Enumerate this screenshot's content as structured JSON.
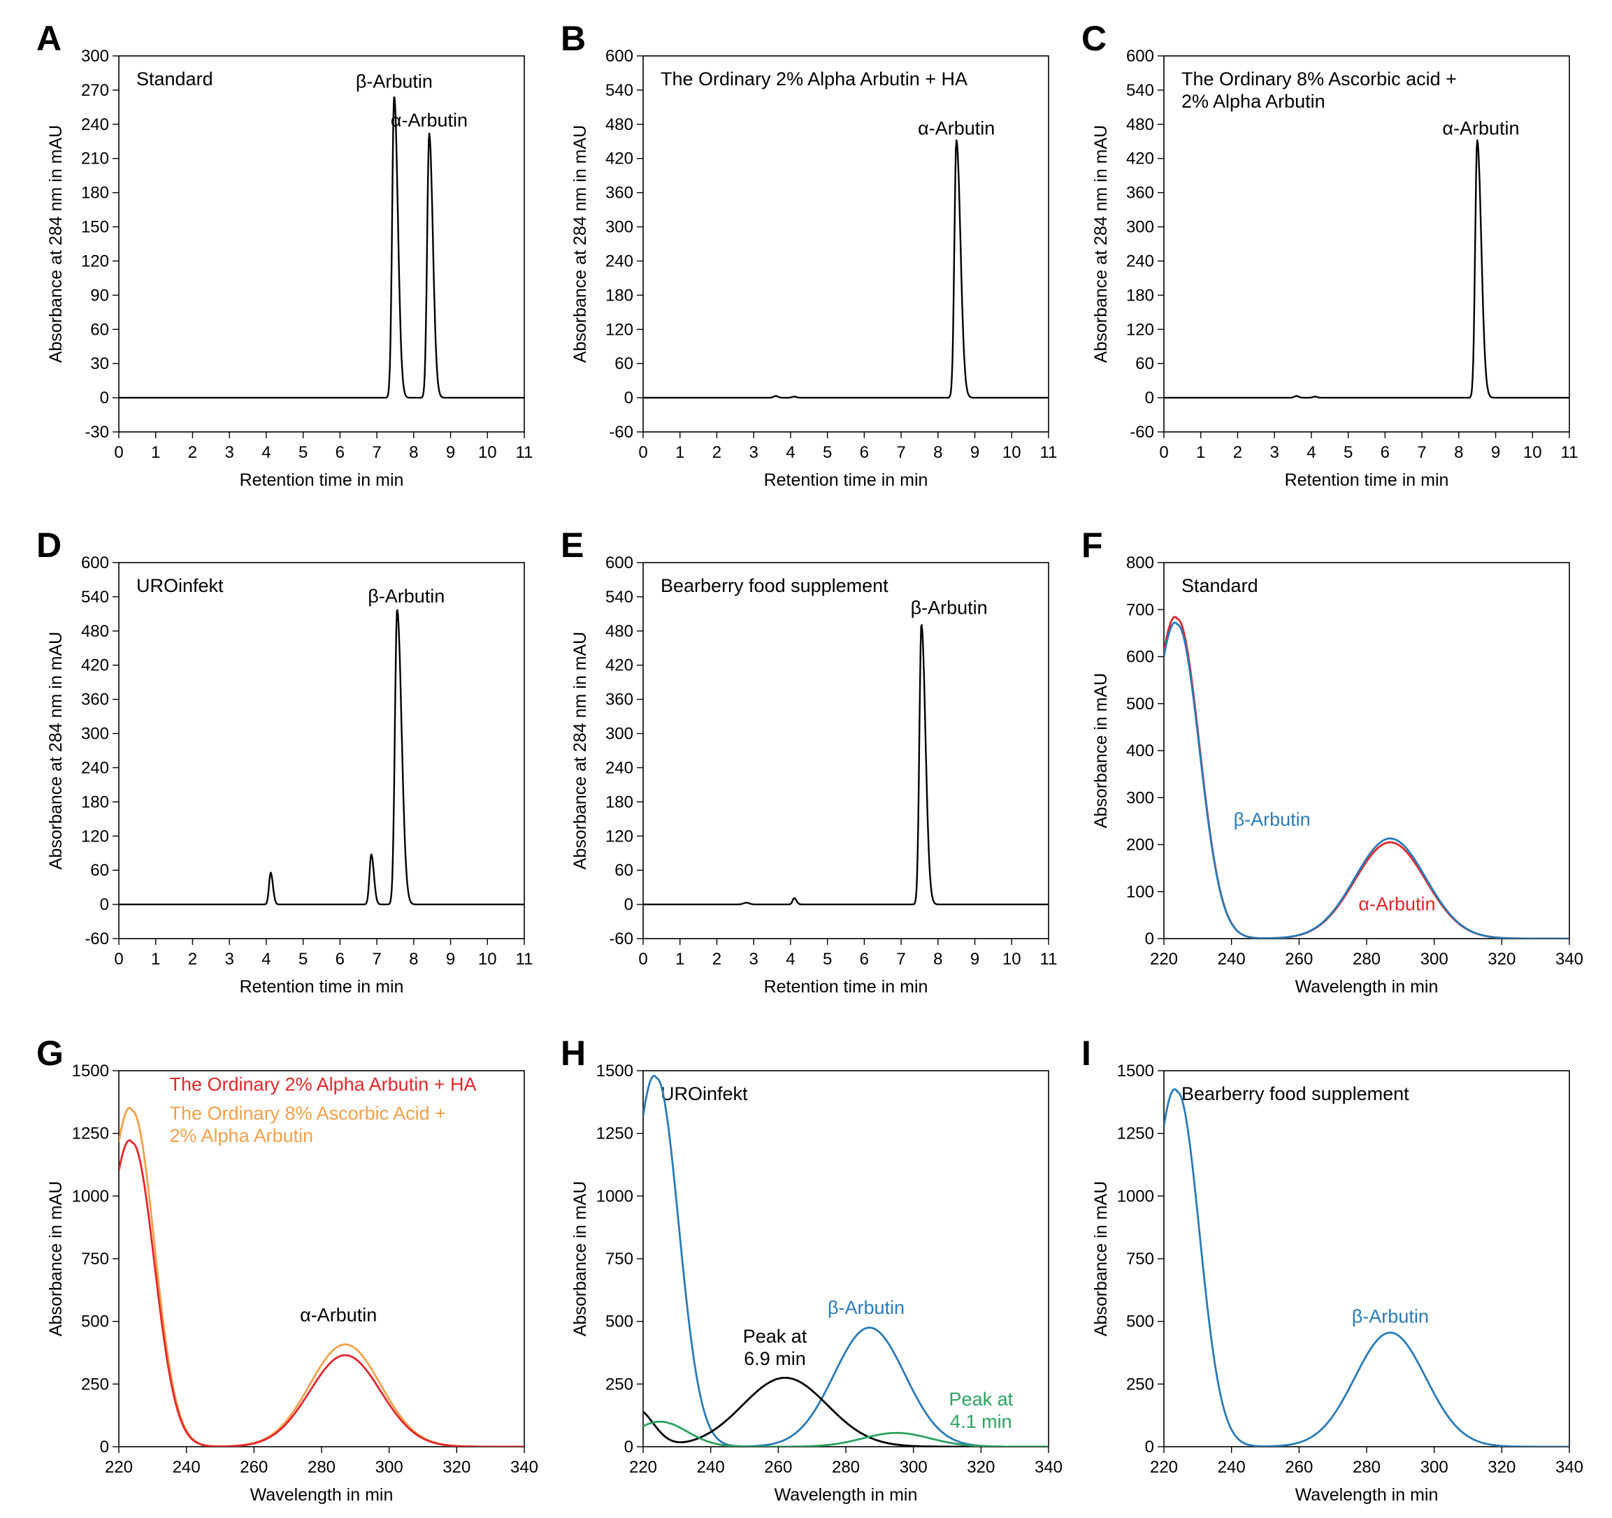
{
  "chart_data": [
    {
      "id": "A",
      "letter": "A",
      "type": "line",
      "title_lines": [
        "Standard"
      ],
      "xlabel": "Retention time in min",
      "ylabel": "Absorbance at 284 nm in mAU",
      "xlim": [
        0,
        11
      ],
      "ylim": [
        -30,
        300
      ],
      "xticks": [
        0,
        1,
        2,
        3,
        4,
        5,
        6,
        7,
        8,
        9,
        10,
        11
      ],
      "yticks": [
        -30,
        0,
        30,
        60,
        90,
        120,
        150,
        180,
        210,
        240,
        270,
        300
      ],
      "series": [
        {
          "name": "chromatogram",
          "color": "#000000",
          "baseline": 0,
          "peaks": [
            [
              7.47,
              265,
              0.055,
              0.1
            ],
            [
              8.42,
              232,
              0.055,
              0.1
            ]
          ]
        }
      ],
      "annotations": [
        {
          "lines": [
            "β-Arbutin"
          ],
          "x": 7.47,
          "y": 272,
          "color": "#000000"
        },
        {
          "lines": [
            "α-Arbutin"
          ],
          "x": 8.42,
          "y": 238,
          "color": "#000000"
        }
      ]
    },
    {
      "id": "B",
      "letter": "B",
      "type": "line",
      "title_lines": [
        "The Ordinary 2% Alpha Arbutin + HA"
      ],
      "xlabel": "Retention time in min",
      "ylabel": "Absorbance at 284 nm in mAU",
      "xlim": [
        0,
        11
      ],
      "ylim": [
        -60,
        600
      ],
      "xticks": [
        0,
        1,
        2,
        3,
        4,
        5,
        6,
        7,
        8,
        9,
        10,
        11
      ],
      "yticks": [
        -60,
        0,
        60,
        120,
        180,
        240,
        300,
        360,
        420,
        480,
        540,
        600
      ],
      "series": [
        {
          "name": "chromatogram",
          "color": "#000000",
          "baseline": 0,
          "peaks": [
            [
              3.6,
              3,
              0.06,
              0.06
            ],
            [
              4.1,
              2,
              0.06,
              0.06
            ],
            [
              8.5,
              452,
              0.055,
              0.11
            ]
          ]
        }
      ],
      "annotations": [
        {
          "lines": [
            "α-Arbutin"
          ],
          "x": 8.5,
          "y": 462,
          "color": "#000000"
        }
      ]
    },
    {
      "id": "C",
      "letter": "C",
      "type": "line",
      "title_lines": [
        "The Ordinary 8% Ascorbic acid +",
        "2% Alpha Arbutin"
      ],
      "xlabel": "Retention time in min",
      "ylabel": "Absorbance at 284 nm in mAU",
      "xlim": [
        0,
        11
      ],
      "ylim": [
        -60,
        600
      ],
      "xticks": [
        0,
        1,
        2,
        3,
        4,
        5,
        6,
        7,
        8,
        9,
        10,
        11
      ],
      "yticks": [
        -60,
        0,
        60,
        120,
        180,
        240,
        300,
        360,
        420,
        480,
        540,
        600
      ],
      "series": [
        {
          "name": "chromatogram",
          "color": "#000000",
          "baseline": 0,
          "peaks": [
            [
              3.6,
              3,
              0.06,
              0.06
            ],
            [
              4.1,
              2,
              0.06,
              0.06
            ],
            [
              8.5,
              452,
              0.055,
              0.11
            ]
          ]
        }
      ],
      "annotations": [
        {
          "lines": [
            "α-Arbutin"
          ],
          "x": 8.6,
          "y": 462,
          "color": "#000000"
        }
      ]
    },
    {
      "id": "D",
      "letter": "D",
      "type": "line",
      "title_lines": [
        "UROinfekt"
      ],
      "xlabel": "Retention time in min",
      "ylabel": "Absorbance at 284 nm in mAU",
      "xlim": [
        0,
        11
      ],
      "ylim": [
        -60,
        600
      ],
      "xticks": [
        0,
        1,
        2,
        3,
        4,
        5,
        6,
        7,
        8,
        9,
        10,
        11
      ],
      "yticks": [
        -60,
        0,
        60,
        120,
        180,
        240,
        300,
        360,
        420,
        480,
        540,
        600
      ],
      "series": [
        {
          "name": "chromatogram",
          "color": "#000000",
          "baseline": 0,
          "peaks": [
            [
              4.12,
              56,
              0.045,
              0.06
            ],
            [
              6.85,
              88,
              0.05,
              0.07
            ],
            [
              7.55,
              518,
              0.06,
              0.12
            ]
          ]
        }
      ],
      "annotations": [
        {
          "lines": [
            "β-Arbutin"
          ],
          "x": 7.8,
          "y": 530,
          "color": "#000000"
        }
      ]
    },
    {
      "id": "E",
      "letter": "E",
      "type": "line",
      "title_lines": [
        "Bearberry food supplement"
      ],
      "xlabel": "Retention time in min",
      "ylabel": "Absorbance at 284 nm in mAU",
      "xlim": [
        0,
        11
      ],
      "ylim": [
        -60,
        600
      ],
      "xticks": [
        0,
        1,
        2,
        3,
        4,
        5,
        6,
        7,
        8,
        9,
        10,
        11
      ],
      "yticks": [
        -60,
        0,
        60,
        120,
        180,
        240,
        300,
        360,
        420,
        480,
        540,
        600
      ],
      "series": [
        {
          "name": "chromatogram",
          "color": "#000000",
          "baseline": 0,
          "peaks": [
            [
              2.8,
              3,
              0.08,
              0.08
            ],
            [
              4.1,
              11,
              0.045,
              0.06
            ],
            [
              7.55,
              492,
              0.055,
              0.11
            ]
          ]
        }
      ],
      "annotations": [
        {
          "lines": [
            "β-Arbutin"
          ],
          "x": 8.3,
          "y": 510,
          "color": "#000000"
        }
      ]
    },
    {
      "id": "F",
      "letter": "F",
      "type": "line",
      "title_lines": [
        "Standard"
      ],
      "xlabel": "Wavelength in min",
      "ylabel": "Absorbance in mAU",
      "xlim": [
        220,
        340
      ],
      "ylim": [
        0,
        800
      ],
      "xticks": [
        220,
        240,
        260,
        280,
        300,
        320,
        340
      ],
      "yticks": [
        0,
        100,
        200,
        300,
        400,
        500,
        600,
        700,
        800
      ],
      "series": [
        {
          "name": "α-Arbutin",
          "color": "#e3262b",
          "x0": 220,
          "spectrum": {
            "a1": 680,
            "c1": 224,
            "s1": 6.5,
            "a2": 205,
            "c2": 287,
            "s2": 10.5,
            "start": 610
          }
        },
        {
          "name": "β-Arbutin",
          "color": "#2a7ab5",
          "x0": 220,
          "spectrum": {
            "a1": 668,
            "c1": 224,
            "s1": 6.5,
            "a2": 213,
            "c2": 287,
            "s2": 10.5,
            "start": 600
          }
        }
      ],
      "annotations": [
        {
          "lines": [
            "β-Arbutin"
          ],
          "x": 252,
          "y": 240,
          "color": "#2a7ab5"
        },
        {
          "lines": [
            "α-Arbutin"
          ],
          "x": 289,
          "y": 60,
          "color": "#e3262b"
        }
      ]
    },
    {
      "id": "G",
      "letter": "G",
      "type": "line",
      "title_lines": [],
      "xlabel": "Wavelength in min",
      "ylabel": "Absorbance in mAU",
      "xlim": [
        220,
        340
      ],
      "ylim": [
        0,
        1500
      ],
      "xticks": [
        220,
        240,
        260,
        280,
        300,
        320,
        340
      ],
      "yticks": [
        0,
        250,
        500,
        750,
        1000,
        1250,
        1500
      ],
      "series": [
        {
          "name": "The Ordinary 8% Ascorbic Acid + 2% Alpha Arbutin",
          "color": "#f0a04b",
          "x0": 220,
          "spectrum": {
            "a1": 1340,
            "c1": 224,
            "s1": 6.5,
            "a2": 408,
            "c2": 287,
            "s2": 10.5,
            "start": 1215
          }
        },
        {
          "name": "The Ordinary 2% Alpha Arbutin + HA",
          "color": "#e3262b",
          "x0": 220,
          "spectrum": {
            "a1": 1212,
            "c1": 224,
            "s1": 6.5,
            "a2": 365,
            "c2": 287,
            "s2": 10.5,
            "start": 1100
          }
        }
      ],
      "annotations": [
        {
          "lines": [
            "The Ordinary 2% Alpha Arbutin + HA"
          ],
          "x": 235,
          "y": 1420,
          "color": "#e3262b",
          "anchor": "start"
        },
        {
          "lines": [
            "The Ordinary 8% Ascorbic Acid +",
            "2% Alpha Arbutin"
          ],
          "x": 235,
          "y": 1305,
          "color": "#f0a04b",
          "anchor": "start"
        },
        {
          "lines": [
            "α-Arbutin"
          ],
          "x": 285,
          "y": 500,
          "color": "#000000"
        }
      ]
    },
    {
      "id": "H",
      "letter": "H",
      "type": "line",
      "title_lines": [
        "UROinfekt"
      ],
      "xlabel": "Wavelength in min",
      "ylabel": "Absorbance in mAU",
      "xlim": [
        220,
        340
      ],
      "ylim": [
        0,
        1500
      ],
      "xticks": [
        220,
        240,
        260,
        280,
        300,
        320,
        340
      ],
      "yticks": [
        0,
        250,
        500,
        750,
        1000,
        1250,
        1500
      ],
      "series": [
        {
          "name": "β-Arbutin",
          "color": "#2a7ab5",
          "x0": 220,
          "spectrum": {
            "a1": 1470,
            "c1": 224,
            "s1": 6.5,
            "a2": 475,
            "c2": 287,
            "s2": 10.5,
            "start": 1320
          }
        },
        {
          "name": "Peak at 6.9 min",
          "color": "#000000",
          "x0": 220,
          "spectrum": {
            "a1": 150,
            "c1": 218,
            "s1": 5,
            "a2": 275,
            "c2": 262,
            "s2": 12.5,
            "start": 135
          }
        },
        {
          "name": "Peak at 4.1 min",
          "color": "#2ca25f",
          "x0": 220,
          "spectrum": {
            "a1": 100,
            "c1": 225,
            "s1": 8,
            "a2": 55,
            "c2": 295,
            "s2": 10,
            "start": 82
          }
        }
      ],
      "annotations": [
        {
          "lines": [
            "β-Arbutin"
          ],
          "x": 286,
          "y": 530,
          "color": "#2a7ab5"
        },
        {
          "lines": [
            "Peak at",
            "6.9 min"
          ],
          "x": 259,
          "y": 415,
          "color": "#000000"
        },
        {
          "lines": [
            "Peak at",
            "4.1 min"
          ],
          "x": 320,
          "y": 165,
          "color": "#2ca25f"
        }
      ]
    },
    {
      "id": "I",
      "letter": "I",
      "type": "line",
      "title_lines": [
        "Bearberry food supplement"
      ],
      "xlabel": "Wavelength in min",
      "ylabel": "Absorbance in mAU",
      "xlim": [
        220,
        340
      ],
      "ylim": [
        0,
        1500
      ],
      "xticks": [
        220,
        240,
        260,
        280,
        300,
        320,
        340
      ],
      "yticks": [
        0,
        250,
        500,
        750,
        1000,
        1250,
        1500
      ],
      "series": [
        {
          "name": "β-Arbutin",
          "color": "#2a7ab5",
          "x0": 220,
          "spectrum": {
            "a1": 1415,
            "c1": 224,
            "s1": 6.5,
            "a2": 455,
            "c2": 287,
            "s2": 10.5,
            "start": 1280
          }
        }
      ],
      "annotations": [
        {
          "lines": [
            "β-Arbutin"
          ],
          "x": 287,
          "y": 495,
          "color": "#2a7ab5"
        }
      ]
    }
  ]
}
